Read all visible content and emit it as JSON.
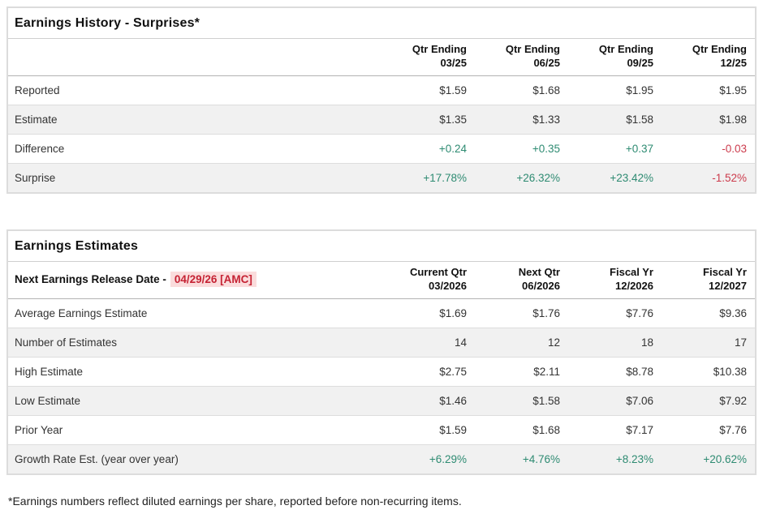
{
  "theme": {
    "positive": "#2e8b72",
    "negative": "#cc3b4c",
    "alert-red": "#c52233",
    "alert-bg": "#fadcdc"
  },
  "history": {
    "title": "Earnings History - Surprises*",
    "columns": [
      {
        "period": "Qtr Ending",
        "date": "03/25"
      },
      {
        "period": "Qtr Ending",
        "date": "06/25"
      },
      {
        "period": "Qtr Ending",
        "date": "09/25"
      },
      {
        "period": "Qtr Ending",
        "date": "12/25"
      }
    ],
    "rows": [
      {
        "label": "Reported",
        "values": [
          "$1.59",
          "$1.68",
          "$1.95",
          "$1.95"
        ]
      },
      {
        "label": "Estimate",
        "values": [
          "$1.35",
          "$1.33",
          "$1.58",
          "$1.98"
        ]
      },
      {
        "label": "Difference",
        "values": [
          "+0.24",
          "+0.35",
          "+0.37",
          "-0.03"
        ]
      },
      {
        "label": "Surprise",
        "values": [
          "+17.78%",
          "+26.32%",
          "+23.42%",
          "-1.52%"
        ]
      }
    ]
  },
  "estimates": {
    "title": "Earnings Estimates",
    "release_date_label": "Next Earnings Release Date -",
    "release_date_value": "04/29/26 [AMC]",
    "columns": [
      {
        "period": "Current Qtr",
        "date": "03/2026"
      },
      {
        "period": "Next Qtr",
        "date": "06/2026"
      },
      {
        "period": "Fiscal Yr",
        "date": "12/2026"
      },
      {
        "period": "Fiscal Yr",
        "date": "12/2027"
      }
    ],
    "rows": [
      {
        "label": "Average Earnings Estimate",
        "values": [
          "$1.69",
          "$1.76",
          "$7.76",
          "$9.36"
        ]
      },
      {
        "label": "Number of Estimates",
        "values": [
          "14",
          "12",
          "18",
          "17"
        ]
      },
      {
        "label": "High Estimate",
        "values": [
          "$2.75",
          "$2.11",
          "$8.78",
          "$10.38"
        ]
      },
      {
        "label": "Low Estimate",
        "values": [
          "$1.46",
          "$1.58",
          "$7.06",
          "$7.92"
        ]
      },
      {
        "label": "Prior Year",
        "values": [
          "$1.59",
          "$1.68",
          "$7.17",
          "$7.76"
        ]
      },
      {
        "label": "Growth Rate Est. (year over year)",
        "values": [
          "+6.29%",
          "+4.76%",
          "+8.23%",
          "+20.62%"
        ]
      }
    ]
  },
  "footnote": "*Earnings numbers reflect diluted earnings per share, reported before non-recurring items."
}
